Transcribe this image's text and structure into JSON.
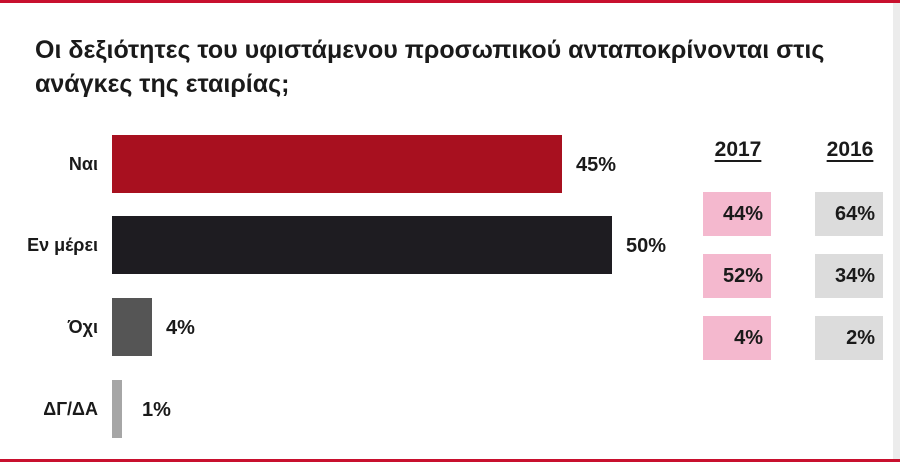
{
  "title": "Οι δεξιότητες του υφιστάμενου προσωπικού ανταποκρίνονται στις ανάγκες της εταιρίας;",
  "colors": {
    "frame": "#c8102e",
    "bars": [
      "#a8101f",
      "#1e1c21",
      "#555555",
      "#a6a6a6"
    ],
    "cell_2017": "#f4b8ce",
    "cell_2016": "#dcdcdc"
  },
  "chart_data": {
    "type": "bar",
    "orientation": "horizontal",
    "title": "Οι δεξιότητες του υφιστάμενου προσωπικού ανταποκρίνονται στις ανάγκες της εταιρίας;",
    "categories": [
      "Ναι",
      "Εν μέρει",
      "Όχι",
      "ΔΓ/ΔΑ"
    ],
    "values": [
      45,
      50,
      4,
      1
    ],
    "value_labels": [
      "45%",
      "50%",
      "4%",
      "1%"
    ],
    "xlim": [
      0,
      100
    ],
    "grid": false
  },
  "comparison_table": {
    "years": [
      "2017",
      "2016"
    ],
    "rows": [
      {
        "y2017": "44%",
        "y2016": "64%"
      },
      {
        "y2017": "52%",
        "y2016": "34%"
      },
      {
        "y2017": "4%",
        "y2016": "2%"
      }
    ]
  }
}
